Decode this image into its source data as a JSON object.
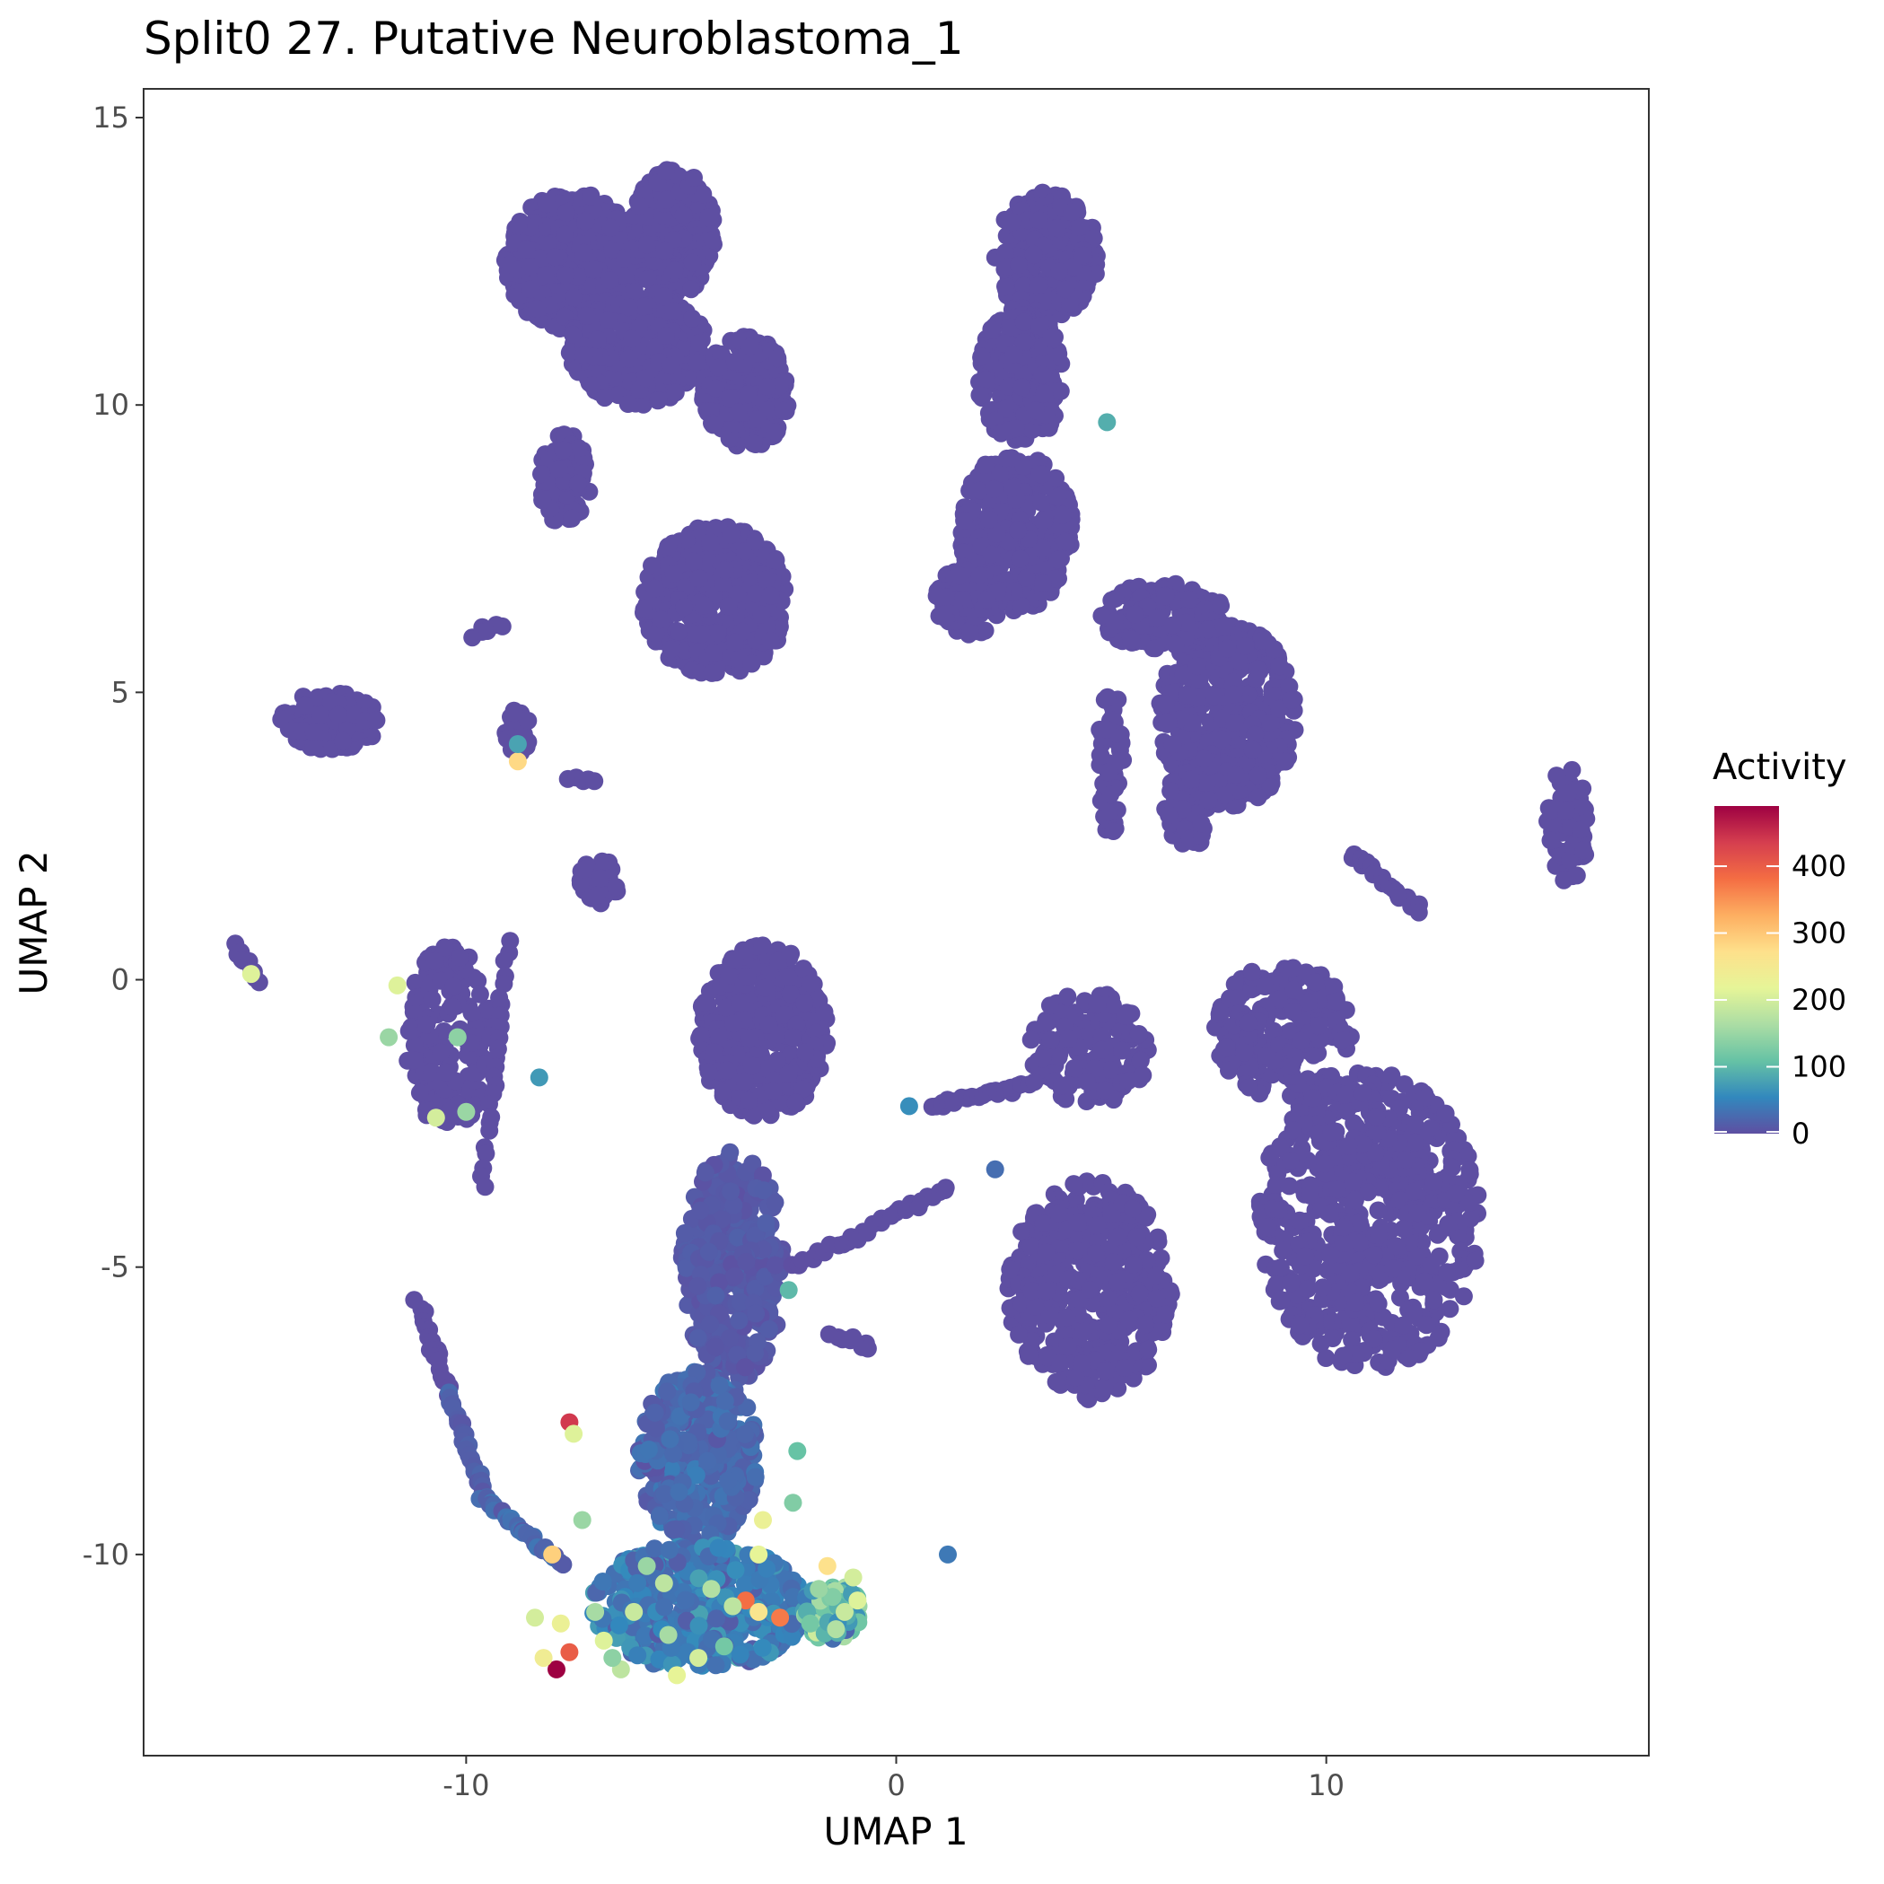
{
  "chart_data": {
    "type": "scatter",
    "title": "Split0 27. Putative Neuroblastoma_1",
    "xlabel": "UMAP 1",
    "ylabel": "UMAP 2",
    "xlim": [
      -17.5,
      17.5
    ],
    "ylim": [
      -13.5,
      15.5
    ],
    "x_ticks": [
      -10,
      0,
      10
    ],
    "x_tick_labels": [
      "-10",
      "0",
      "10"
    ],
    "y_ticks": [
      15,
      10,
      5,
      0,
      -5,
      -10
    ],
    "y_tick_labels": [
      "15",
      "10",
      "5",
      "0",
      "-5",
      "-10"
    ],
    "grid": false,
    "colorbar": {
      "title": "Activity",
      "min": 0,
      "max": 490,
      "ticks": [
        0,
        100,
        200,
        300,
        400
      ],
      "tick_labels": [
        "0",
        "100",
        "200",
        "300",
        "400"
      ],
      "colors": [
        "#5E4FA2",
        "#3288BD",
        "#66C2A5",
        "#ABDDA4",
        "#E6F598",
        "#FEE08B",
        "#FDAE61",
        "#F46D43",
        "#D53E4F",
        "#9E0142"
      ],
      "placement": "right"
    },
    "clusters": [
      {
        "cx": -7.5,
        "cy": 12.5,
        "rx": 1.6,
        "ry": 1.2,
        "n": 500,
        "value": 0
      },
      {
        "cx": -5.2,
        "cy": 13.0,
        "rx": 1.0,
        "ry": 1.1,
        "n": 300,
        "value": 0
      },
      {
        "cx": -6.0,
        "cy": 11.0,
        "rx": 1.6,
        "ry": 1.0,
        "n": 320,
        "value": 0
      },
      {
        "cx": -3.5,
        "cy": 10.2,
        "rx": 1.0,
        "ry": 1.0,
        "n": 240,
        "value": 0
      },
      {
        "cx": -7.7,
        "cy": 8.7,
        "rx": 0.6,
        "ry": 0.8,
        "n": 80,
        "value": 0
      },
      {
        "cx": -4.2,
        "cy": 6.6,
        "rx": 1.7,
        "ry": 1.3,
        "n": 420,
        "value": 0
      },
      {
        "cx": 3.5,
        "cy": 12.6,
        "rx": 1.2,
        "ry": 1.1,
        "n": 300,
        "value": 0
      },
      {
        "cx": 2.9,
        "cy": 10.5,
        "rx": 1.0,
        "ry": 1.2,
        "n": 220,
        "value": 0
      },
      {
        "cx": 2.8,
        "cy": 7.8,
        "rx": 1.3,
        "ry": 1.4,
        "n": 320,
        "value": 0
      },
      {
        "cx": 1.7,
        "cy": 6.6,
        "rx": 0.8,
        "ry": 0.6,
        "n": 120,
        "value": 0
      },
      {
        "cx": 7.7,
        "cy": 4.6,
        "rx": 1.6,
        "ry": 1.6,
        "n": 380,
        "value": 0
      },
      {
        "cx": 6.2,
        "cy": 6.3,
        "rx": 1.5,
        "ry": 0.6,
        "n": 150,
        "value": 0
      },
      {
        "cx": 5.0,
        "cy": 3.8,
        "rx": 0.3,
        "ry": 1.3,
        "n": 60,
        "value": 0
      },
      {
        "cx": 6.8,
        "cy": 3.0,
        "rx": 0.6,
        "ry": 0.7,
        "n": 60,
        "value": 0
      },
      {
        "cx": -13.2,
        "cy": 4.5,
        "rx": 1.2,
        "ry": 0.5,
        "n": 140,
        "value": 0
      },
      {
        "cx": -8.8,
        "cy": 4.3,
        "rx": 0.3,
        "ry": 0.4,
        "n": 30,
        "value": 0
      },
      {
        "cx": -6.9,
        "cy": 1.7,
        "rx": 0.5,
        "ry": 0.4,
        "n": 40,
        "value": 0
      },
      {
        "cx": -10.4,
        "cy": -1.0,
        "rx": 1.0,
        "ry": 1.6,
        "n": 170,
        "value": 0
      },
      {
        "cx": -3.1,
        "cy": -0.9,
        "rx": 1.5,
        "ry": 1.5,
        "n": 360,
        "value": 0
      },
      {
        "cx": -3.8,
        "cy": -5.0,
        "rx": 1.2,
        "ry": 2.0,
        "n": 360,
        "value": 10
      },
      {
        "cx": -4.6,
        "cy": -8.3,
        "rx": 1.4,
        "ry": 1.5,
        "n": 360,
        "value": 25
      },
      {
        "cx": -4.6,
        "cy": -10.9,
        "rx": 2.5,
        "ry": 1.1,
        "n": 420,
        "value": 45
      },
      {
        "cx": -1.5,
        "cy": -11.0,
        "rx": 0.7,
        "ry": 0.5,
        "n": 90,
        "value": 110
      },
      {
        "cx": 4.5,
        "cy": -1.2,
        "rx": 1.4,
        "ry": 1.0,
        "n": 160,
        "value": 0
      },
      {
        "cx": 4.5,
        "cy": -5.4,
        "rx": 1.9,
        "ry": 1.9,
        "n": 420,
        "value": 0
      },
      {
        "cx": 9.0,
        "cy": -0.9,
        "rx": 1.6,
        "ry": 1.2,
        "n": 220,
        "value": 0
      },
      {
        "cx": 11.0,
        "cy": -4.2,
        "rx": 2.6,
        "ry": 2.6,
        "n": 620,
        "value": 0
      },
      {
        "cx": 15.6,
        "cy": 2.7,
        "rx": 0.5,
        "ry": 1.0,
        "n": 70,
        "value": 0
      }
    ],
    "strands": [
      {
        "x0": -15.4,
        "y0": 0.6,
        "x1": -14.8,
        "y1": 0.0,
        "n": 10,
        "value": 0
      },
      {
        "x0": -11.1,
        "y0": -5.6,
        "x1": -10.4,
        "y1": -7.2,
        "n": 20,
        "value": 0
      },
      {
        "x0": -10.4,
        "y0": -7.2,
        "x1": -9.6,
        "y1": -9.0,
        "n": 25,
        "value": 15
      },
      {
        "x0": -9.6,
        "y0": -9.0,
        "x1": -7.8,
        "y1": -10.2,
        "n": 30,
        "value": 25
      },
      {
        "x0": 10.6,
        "y0": 2.2,
        "x1": 12.2,
        "y1": 1.2,
        "n": 20,
        "value": 0
      },
      {
        "x0": -2.4,
        "y0": -5.0,
        "x1": 1.2,
        "y1": -3.6,
        "n": 30,
        "value": 0
      },
      {
        "x0": 0.8,
        "y0": -2.2,
        "x1": 3.2,
        "y1": -1.8,
        "n": 25,
        "value": 0
      },
      {
        "x0": -1.5,
        "y0": -6.2,
        "x1": -0.6,
        "y1": -6.4,
        "n": 8,
        "value": 0
      },
      {
        "x0": -9.0,
        "y0": 0.6,
        "x1": -9.6,
        "y1": -3.6,
        "n": 25,
        "value": 0
      },
      {
        "x0": -9.8,
        "y0": 6.0,
        "x1": -9.2,
        "y1": 6.2,
        "n": 6,
        "value": 0
      },
      {
        "x0": -7.6,
        "y0": 3.5,
        "x1": -7.0,
        "y1": 3.5,
        "n": 5,
        "value": 0
      }
    ],
    "highlights": [
      {
        "x": -7.9,
        "y": -12.0,
        "value": 490
      },
      {
        "x": -7.6,
        "y": -7.7,
        "value": 440
      },
      {
        "x": -7.6,
        "y": -11.7,
        "value": 400
      },
      {
        "x": -3.5,
        "y": -10.8,
        "value": 380
      },
      {
        "x": -2.7,
        "y": -11.1,
        "value": 370
      },
      {
        "x": -8.8,
        "y": 3.8,
        "value": 280
      },
      {
        "x": -8.0,
        "y": -10.0,
        "value": 290
      },
      {
        "x": -1.6,
        "y": -10.2,
        "value": 270
      },
      {
        "x": -3.2,
        "y": -11.0,
        "value": 260
      },
      {
        "x": -3.1,
        "y": -9.4,
        "value": 230
      },
      {
        "x": -15.0,
        "y": 0.1,
        "value": 210
      },
      {
        "x": -11.6,
        "y": -0.1,
        "value": 210
      },
      {
        "x": -10.7,
        "y": -2.4,
        "value": 200
      },
      {
        "x": -7.5,
        "y": -7.9,
        "value": 210
      },
      {
        "x": -3.2,
        "y": -10.0,
        "value": 220
      },
      {
        "x": -1.0,
        "y": -10.4,
        "value": 200
      },
      {
        "x": -5.1,
        "y": -12.1,
        "value": 220
      },
      {
        "x": -6.8,
        "y": -11.5,
        "value": 210
      },
      {
        "x": -1.4,
        "y": -11.3,
        "value": 170
      },
      {
        "x": -11.8,
        "y": -1.0,
        "value": 150
      },
      {
        "x": -10.2,
        "y": -1.0,
        "value": 140
      },
      {
        "x": -10.0,
        "y": -2.3,
        "value": 150
      },
      {
        "x": -7.3,
        "y": -9.4,
        "value": 150
      },
      {
        "x": -2.4,
        "y": -9.1,
        "value": 130
      },
      {
        "x": -2.3,
        "y": -8.2,
        "value": 110
      },
      {
        "x": -2.5,
        "y": -5.4,
        "value": 100
      },
      {
        "x": 4.9,
        "y": 9.7,
        "value": 90
      },
      {
        "x": -8.8,
        "y": 4.1,
        "value": 80
      },
      {
        "x": -8.3,
        "y": -1.7,
        "value": 70
      },
      {
        "x": 1.2,
        "y": -10.0,
        "value": 40
      },
      {
        "x": 0.3,
        "y": -2.2,
        "value": 60
      },
      {
        "x": 2.3,
        "y": -3.3,
        "value": 30
      },
      {
        "x": -5.4,
        "y": -10.5,
        "value": 180
      },
      {
        "x": -6.1,
        "y": -11.0,
        "value": 190
      },
      {
        "x": -4.6,
        "y": -11.8,
        "value": 200
      },
      {
        "x": -4.3,
        "y": -10.6,
        "value": 170
      },
      {
        "x": -6.4,
        "y": -12.0,
        "value": 180
      },
      {
        "x": -7.0,
        "y": -11.0,
        "value": 160
      },
      {
        "x": -1.2,
        "y": -11.0,
        "value": 190
      },
      {
        "x": -0.9,
        "y": -10.8,
        "value": 210
      },
      {
        "x": -1.8,
        "y": -10.6,
        "value": 150
      },
      {
        "x": -5.8,
        "y": -10.2,
        "value": 150
      },
      {
        "x": -7.8,
        "y": -11.2,
        "value": 230
      },
      {
        "x": -8.2,
        "y": -11.8,
        "value": 240
      },
      {
        "x": -8.4,
        "y": -11.1,
        "value": 200
      },
      {
        "x": -3.8,
        "y": -10.9,
        "value": 180
      },
      {
        "x": -5.3,
        "y": -11.4,
        "value": 160
      },
      {
        "x": -6.6,
        "y": -11.8,
        "value": 140
      },
      {
        "x": -2.0,
        "y": -11.2,
        "value": 120
      },
      {
        "x": -4.0,
        "y": -11.6,
        "value": 120
      }
    ]
  }
}
